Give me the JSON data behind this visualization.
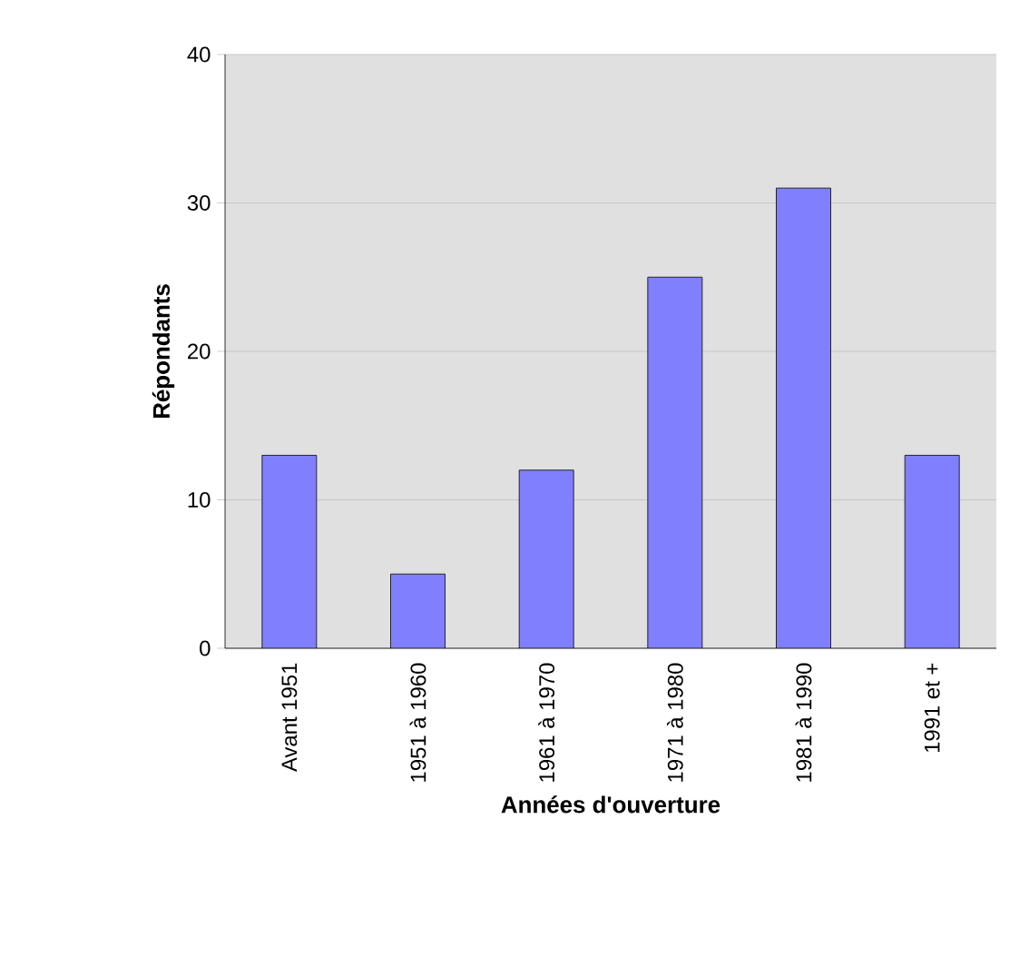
{
  "chart_data": {
    "type": "bar",
    "xlabel": "Années d'ouverture",
    "ylabel": "Répondants",
    "categories": [
      "Avant 1951",
      "1951 à 1960",
      "1961 à 1970",
      "1971 à 1980",
      "1981 à 1990",
      "1991 et +"
    ],
    "values": [
      13,
      5,
      12,
      25,
      31,
      13
    ],
    "color": "#8080ff",
    "ylim": [
      0,
      40
    ],
    "yticks": [
      0,
      10,
      20,
      30,
      40
    ],
    "grid": "y"
  }
}
